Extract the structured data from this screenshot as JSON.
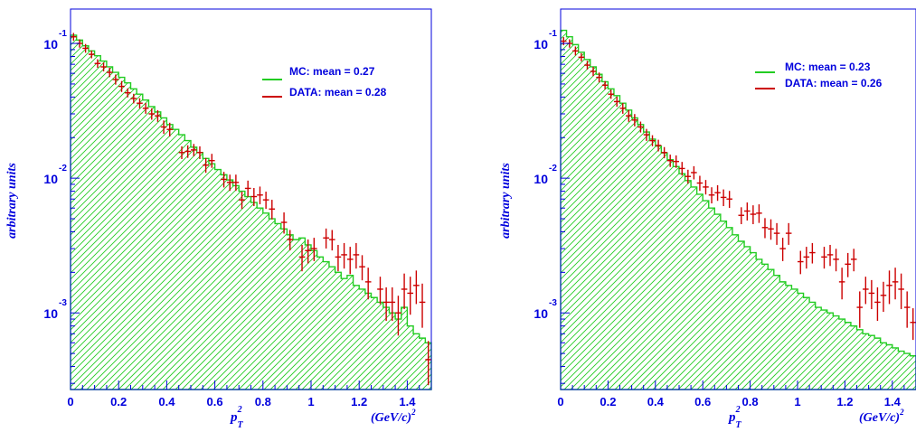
{
  "colors": {
    "axis": "#0000dd",
    "mc": "#22cc22",
    "data": "#cc0000",
    "text": "#0000dd"
  },
  "chart_data": [
    {
      "type": "histogram",
      "ylabel": "arbitrary units",
      "xlabel": "p_T^2",
      "xunit": "(GeV/c)^2",
      "log_y": true,
      "xlim": [
        0,
        1.5
      ],
      "ylim": [
        0.00027,
        0.18
      ],
      "x_ticks": [
        "0",
        "0.2",
        "0.4",
        "0.6",
        "0.8",
        "1",
        "1.2",
        "1.4"
      ],
      "y_ticks": [
        {
          "base": "10",
          "exp": "-1"
        },
        {
          "base": "10",
          "exp": "-2"
        },
        {
          "base": "10",
          "exp": "-3"
        }
      ],
      "legend": [
        {
          "label": "MC: mean = 0.27",
          "series": "mc"
        },
        {
          "label": "DATA: mean = 0.28",
          "series": "data"
        }
      ],
      "bin_width": 0.025,
      "mc": [
        0.115,
        0.106,
        0.096,
        0.088,
        0.081,
        0.074,
        0.067,
        0.061,
        0.056,
        0.051,
        0.046,
        0.042,
        0.038,
        0.034,
        0.031,
        0.028,
        0.025,
        0.023,
        0.021,
        0.019,
        0.017,
        0.0155,
        0.014,
        0.0128,
        0.0116,
        0.0106,
        0.0097,
        0.0088,
        0.008,
        0.0073,
        0.0066,
        0.006,
        0.0055,
        0.005,
        0.0046,
        0.0042,
        0.0038,
        0.0035,
        0.0036,
        0.0032,
        0.0029,
        0.0026,
        0.0024,
        0.0022,
        0.002,
        0.0018,
        0.0019,
        0.0016,
        0.0015,
        0.0014,
        0.0013,
        0.0012,
        0.0011,
        0.001,
        0.0009,
        0.0011,
        0.0008,
        0.0007,
        0.00065,
        0.0006
      ],
      "data": [
        [
          0.0125,
          0.112,
          0.004
        ],
        [
          0.0375,
          0.1,
          0.004
        ],
        [
          0.0625,
          0.092,
          0.004
        ],
        [
          0.0875,
          0.083,
          0.003
        ],
        [
          0.1125,
          0.071,
          0.003
        ],
        [
          0.1375,
          0.067,
          0.003
        ],
        [
          0.1625,
          0.061,
          0.003
        ],
        [
          0.1875,
          0.054,
          0.003
        ],
        [
          0.2125,
          0.048,
          0.003
        ],
        [
          0.2375,
          0.043,
          0.002
        ],
        [
          0.2625,
          0.039,
          0.002
        ],
        [
          0.2875,
          0.036,
          0.002
        ],
        [
          0.3125,
          0.033,
          0.002
        ],
        [
          0.3375,
          0.03,
          0.002
        ],
        [
          0.3625,
          0.029,
          0.002
        ],
        [
          0.3875,
          0.024,
          0.002
        ],
        [
          0.4125,
          0.023,
          0.002
        ],
        [
          0.4625,
          0.0155,
          0.0012
        ],
        [
          0.4875,
          0.0158,
          0.0012
        ],
        [
          0.5125,
          0.0162,
          0.0012
        ],
        [
          0.5375,
          0.0155,
          0.0012
        ],
        [
          0.5625,
          0.0125,
          0.0012
        ],
        [
          0.5875,
          0.0135,
          0.0012
        ],
        [
          0.6375,
          0.0098,
          0.001
        ],
        [
          0.6625,
          0.0093,
          0.001
        ],
        [
          0.6875,
          0.0093,
          0.001
        ],
        [
          0.7125,
          0.0069,
          0.0008
        ],
        [
          0.7375,
          0.0084,
          0.0009
        ],
        [
          0.7625,
          0.0073,
          0.0009
        ],
        [
          0.7875,
          0.0075,
          0.0009
        ],
        [
          0.8125,
          0.0069,
          0.0008
        ],
        [
          0.8375,
          0.0059,
          0.0008
        ],
        [
          0.8875,
          0.0047,
          0.0007
        ],
        [
          0.9125,
          0.0035,
          0.0005
        ],
        [
          0.9625,
          0.0026,
          0.0005
        ],
        [
          0.9875,
          0.0029,
          0.0005
        ],
        [
          1.0125,
          0.003,
          0.0005
        ],
        [
          1.0625,
          0.0036,
          0.0005
        ],
        [
          1.0875,
          0.0035,
          0.0005
        ],
        [
          1.1125,
          0.0026,
          0.0005
        ],
        [
          1.1375,
          0.0027,
          0.0005
        ],
        [
          1.1625,
          0.0025,
          0.0005
        ],
        [
          1.1875,
          0.0027,
          0.0005
        ],
        [
          1.2125,
          0.0022,
          0.0004
        ],
        [
          1.2375,
          0.0017,
          0.0004
        ],
        [
          1.2875,
          0.0015,
          0.0003
        ],
        [
          1.3125,
          0.0012,
          0.0003
        ],
        [
          1.3375,
          0.0012,
          0.0003
        ],
        [
          1.3625,
          0.001,
          0.0003
        ],
        [
          1.3875,
          0.0015,
          0.0004
        ],
        [
          1.4125,
          0.0014,
          0.0004
        ],
        [
          1.4375,
          0.0016,
          0.0004
        ],
        [
          1.4625,
          0.0012,
          0.0004
        ],
        [
          1.4875,
          0.00045,
          0.00015
        ]
      ]
    },
    {
      "type": "histogram",
      "ylabel": "arbitrary units",
      "xlabel": "p_T^2",
      "xunit": "(GeV/c)^2",
      "log_y": true,
      "xlim": [
        0,
        1.5
      ],
      "ylim": [
        0.00027,
        0.18
      ],
      "x_ticks": [
        "0",
        "0.2",
        "0.4",
        "0.6",
        "0.8",
        "1",
        "1.2",
        "1.4"
      ],
      "y_ticks": [
        {
          "base": "10",
          "exp": "-1"
        },
        {
          "base": "10",
          "exp": "-2"
        },
        {
          "base": "10",
          "exp": "-3"
        }
      ],
      "legend": [
        {
          "label": "MC: mean = 0.23",
          "series": "mc"
        },
        {
          "label": "DATA: mean = 0.26",
          "series": "data"
        }
      ],
      "bin_width": 0.025,
      "mc": [
        0.125,
        0.112,
        0.098,
        0.086,
        0.076,
        0.067,
        0.059,
        0.052,
        0.046,
        0.041,
        0.036,
        0.032,
        0.028,
        0.025,
        0.022,
        0.0195,
        0.0173,
        0.0154,
        0.0137,
        0.0122,
        0.0108,
        0.0096,
        0.0086,
        0.0076,
        0.0068,
        0.006,
        0.0054,
        0.0048,
        0.0043,
        0.0038,
        0.0034,
        0.0031,
        0.0028,
        0.0025,
        0.0023,
        0.0021,
        0.0019,
        0.0017,
        0.0016,
        0.0015,
        0.0014,
        0.0013,
        0.0012,
        0.0011,
        0.00105,
        0.001,
        0.00095,
        0.0009,
        0.00085,
        0.0008,
        0.00075,
        0.0007,
        0.00068,
        0.00065,
        0.0006,
        0.00058,
        0.00055,
        0.00052,
        0.0005,
        0.00048
      ],
      "data": [
        [
          0.0125,
          0.104,
          0.004
        ],
        [
          0.0375,
          0.1,
          0.004
        ],
        [
          0.0625,
          0.088,
          0.004
        ],
        [
          0.0875,
          0.079,
          0.003
        ],
        [
          0.1125,
          0.069,
          0.003
        ],
        [
          0.1375,
          0.062,
          0.003
        ],
        [
          0.1625,
          0.056,
          0.003
        ],
        [
          0.1875,
          0.049,
          0.002
        ],
        [
          0.2125,
          0.042,
          0.002
        ],
        [
          0.2375,
          0.037,
          0.002
        ],
        [
          0.2625,
          0.033,
          0.002
        ],
        [
          0.2875,
          0.029,
          0.002
        ],
        [
          0.3125,
          0.027,
          0.002
        ],
        [
          0.3375,
          0.024,
          0.0015
        ],
        [
          0.3625,
          0.021,
          0.0015
        ],
        [
          0.3875,
          0.019,
          0.0012
        ],
        [
          0.4125,
          0.0175,
          0.0012
        ],
        [
          0.4375,
          0.0155,
          0.001
        ],
        [
          0.4625,
          0.0135,
          0.001
        ],
        [
          0.4875,
          0.0133,
          0.001
        ],
        [
          0.5125,
          0.0118,
          0.001
        ],
        [
          0.5375,
          0.0103,
          0.0009
        ],
        [
          0.5625,
          0.011,
          0.0009
        ],
        [
          0.5875,
          0.0092,
          0.0009
        ],
        [
          0.6125,
          0.0086,
          0.0008
        ],
        [
          0.6375,
          0.0075,
          0.0008
        ],
        [
          0.6625,
          0.0078,
          0.0008
        ],
        [
          0.6875,
          0.0072,
          0.0008
        ],
        [
          0.7125,
          0.007,
          0.0008
        ],
        [
          0.7625,
          0.0053,
          0.0006
        ],
        [
          0.7875,
          0.0057,
          0.0007
        ],
        [
          0.8125,
          0.0054,
          0.0007
        ],
        [
          0.8375,
          0.0055,
          0.0007
        ],
        [
          0.8625,
          0.0043,
          0.0006
        ],
        [
          0.8875,
          0.0042,
          0.0006
        ],
        [
          0.9125,
          0.0039,
          0.0006
        ],
        [
          0.9375,
          0.003,
          0.0005
        ],
        [
          0.9625,
          0.0039,
          0.0006
        ],
        [
          1.0125,
          0.0024,
          0.0004
        ],
        [
          1.0375,
          0.0026,
          0.0004
        ],
        [
          1.0625,
          0.0028,
          0.0004
        ],
        [
          1.1125,
          0.0026,
          0.0004
        ],
        [
          1.1375,
          0.0027,
          0.0004
        ],
        [
          1.1625,
          0.0025,
          0.0004
        ],
        [
          1.1875,
          0.0017,
          0.0004
        ],
        [
          1.2125,
          0.0023,
          0.0004
        ],
        [
          1.2375,
          0.0025,
          0.0004
        ],
        [
          1.2625,
          0.0011,
          0.0003
        ],
        [
          1.2875,
          0.0015,
          0.0003
        ],
        [
          1.3125,
          0.0014,
          0.0003
        ],
        [
          1.3375,
          0.0012,
          0.0003
        ],
        [
          1.3625,
          0.00135,
          0.0003
        ],
        [
          1.3875,
          0.0016,
          0.0004
        ],
        [
          1.4125,
          0.0017,
          0.0004
        ],
        [
          1.4375,
          0.0015,
          0.0004
        ],
        [
          1.4625,
          0.0011,
          0.0003
        ],
        [
          1.4875,
          0.00085,
          0.0002
        ]
      ]
    }
  ]
}
